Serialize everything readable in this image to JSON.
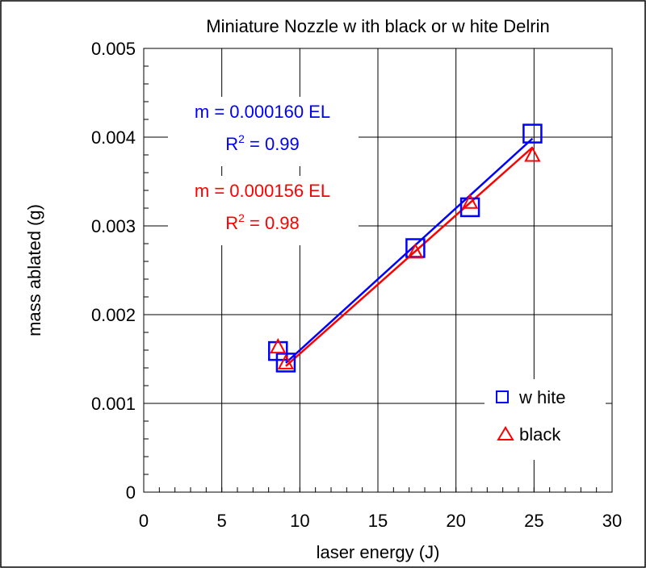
{
  "chart_data": {
    "type": "scatter",
    "title": "Miniature Nozzle w ith black or w hite Delrin",
    "xlabel": "laser energy (J)",
    "ylabel": "mass ablated (g)",
    "xlim": [
      0,
      30
    ],
    "ylim": [
      0,
      0.005
    ],
    "x_ticks": [
      "0",
      "5",
      "10",
      "15",
      "20",
      "25",
      "30"
    ],
    "y_ticks": [
      "0",
      "0.001",
      "0.002",
      "0.003",
      "0.004",
      "0.005"
    ],
    "grid": true,
    "legend_position": "bottom-right",
    "series": [
      {
        "name": "w hite",
        "marker": "square",
        "color": "#0000ff",
        "points": [
          {
            "x": 8.6,
            "y": 0.00159
          },
          {
            "x": 9.1,
            "y": 0.00146
          },
          {
            "x": 17.4,
            "y": 0.00275
          },
          {
            "x": 20.9,
            "y": 0.00321
          },
          {
            "x": 24.9,
            "y": 0.00404
          }
        ],
        "fit": {
          "slope": 0.00016,
          "x_range": [
            9.1,
            24.9
          ]
        }
      },
      {
        "name": "black",
        "marker": "triangle",
        "color": "#ff0000",
        "points": [
          {
            "x": 8.6,
            "y": 0.00164
          },
          {
            "x": 9.1,
            "y": 0.00146
          },
          {
            "x": 17.4,
            "y": 0.00271
          },
          {
            "x": 20.9,
            "y": 0.00327
          },
          {
            "x": 24.9,
            "y": 0.0038
          }
        ],
        "fit": {
          "slope": 0.000156,
          "x_range": [
            9.1,
            24.9
          ]
        }
      }
    ],
    "annotations": [
      {
        "line1": "m = 0.000160 EL",
        "r2_prefix": "R",
        "r2_sup": "2",
        "r2_suffix": " = 0.99",
        "color": "#0000ff"
      },
      {
        "line1": "m = 0.000156 EL",
        "r2_prefix": "R",
        "r2_sup": "2",
        "r2_suffix": " = 0.98",
        "color": "#ff0000"
      }
    ]
  }
}
